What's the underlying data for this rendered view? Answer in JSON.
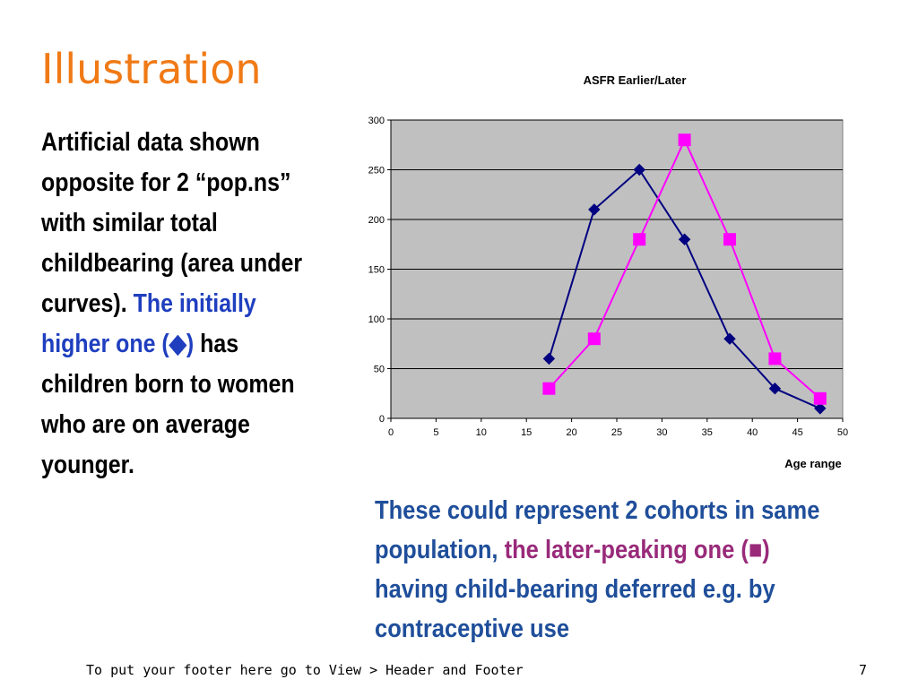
{
  "slide": {
    "title": "Illustration",
    "left_text": {
      "part1": "Artificial data shown opposite for 2 “pop.ns” with similar total childbearing (area under curves).",
      "part2_blue": "The initially higher one (◆)",
      "part3": "has children born to women who are on average younger."
    },
    "bottom_text": {
      "part1": "These could represent 2 cohorts in same population,",
      "part2_purple": "the later-peaking one (■)",
      "part3": "having child-bearing deferred e.g. by contraceptive use"
    },
    "footer": "To put your footer here go to View > Header and Footer",
    "page_number": "7"
  },
  "chart_data": {
    "type": "line",
    "title": "ASFR Earlier/Later",
    "xlabel": "Age range",
    "ylabel": "",
    "xlim": [
      0,
      50
    ],
    "ylim": [
      0,
      300
    ],
    "xticks": [
      0,
      5,
      10,
      15,
      20,
      25,
      30,
      35,
      40,
      45,
      50
    ],
    "yticks": [
      0,
      50,
      100,
      150,
      200,
      250,
      300
    ],
    "grid": true,
    "plot_background": "#c0c0c0",
    "series": [
      {
        "marker": "diamond",
        "color": "#000080",
        "x": [
          17.5,
          22.5,
          27.5,
          32.5,
          37.5,
          42.5,
          47.5
        ],
        "y": [
          60,
          210,
          250,
          180,
          80,
          30,
          10
        ]
      },
      {
        "marker": "square",
        "color": "#ff00ff",
        "x": [
          17.5,
          22.5,
          27.5,
          32.5,
          37.5,
          42.5,
          47.5
        ],
        "y": [
          30,
          80,
          180,
          280,
          180,
          60,
          20
        ]
      }
    ]
  }
}
